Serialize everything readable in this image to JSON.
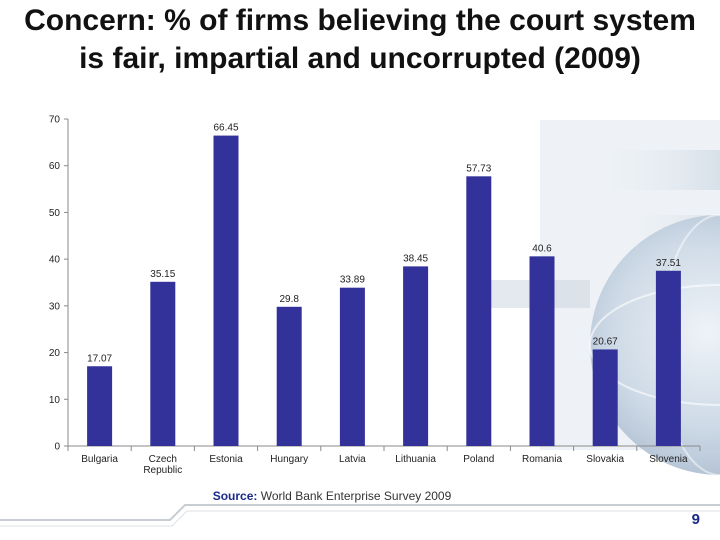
{
  "slide": {
    "title": "Concern: % of firms believing the court system is fair, impartial and uncorrupted (2009)",
    "source_label": "Source:",
    "source_text": "World Bank Enterprise Survey 2009",
    "page_number": "9"
  },
  "colors": {
    "bar": "#33329a",
    "axis": "#8a8a8a",
    "text": "#222222",
    "accent": "#1a2a8a"
  },
  "chart_data": {
    "type": "bar",
    "title": "",
    "xlabel": "",
    "ylabel": "",
    "ylim": [
      0,
      70
    ],
    "yticks": [
      0,
      10,
      20,
      30,
      40,
      50,
      60,
      70
    ],
    "grid": false,
    "legend": "none",
    "categories": [
      [
        "Bulgaria"
      ],
      [
        "Czech",
        "Republic"
      ],
      [
        "Estonia"
      ],
      [
        "Hungary"
      ],
      [
        "Latvia"
      ],
      [
        "Lithuania"
      ],
      [
        "Poland"
      ],
      [
        "Romania"
      ],
      [
        "Slovakia"
      ],
      [
        "Slovenia"
      ]
    ],
    "values": [
      17.07,
      35.15,
      66.45,
      29.8,
      33.89,
      38.45,
      57.73,
      40.6,
      20.67,
      37.51
    ],
    "value_labels": [
      "17.07",
      "35.15",
      "66.45",
      "29.8",
      "33.89",
      "38.45",
      "57.73",
      "40.6",
      "20.67",
      "37.51"
    ]
  }
}
